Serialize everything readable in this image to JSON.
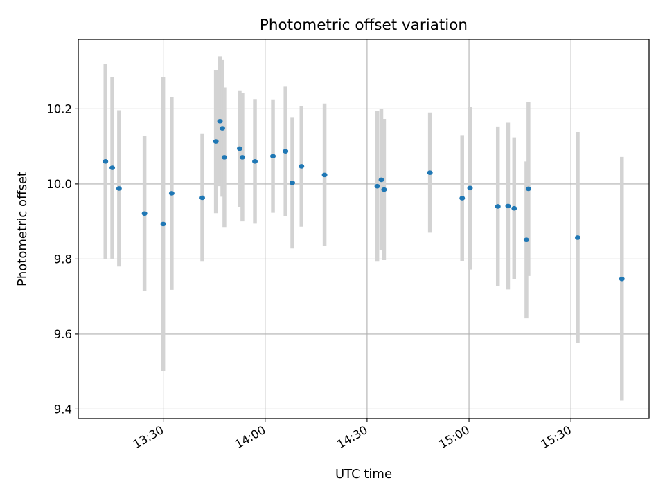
{
  "chart_data": {
    "type": "scatter",
    "title": "Photometric offset variation",
    "xlabel": "UTC time",
    "ylabel": "Photometric offset",
    "x_axis": {
      "scale": "time",
      "range": [
        "13:05",
        "15:53"
      ],
      "ticks": [
        "13:30",
        "14:00",
        "14:30",
        "15:00",
        "15:30"
      ]
    },
    "y_axis": {
      "range": [
        9.375,
        10.385
      ],
      "ticks": [
        "9.4",
        "9.6",
        "9.8",
        "10.0",
        "10.2"
      ]
    },
    "grid": true,
    "legend": "none",
    "colors": {
      "marker": "#1f77b4",
      "errorbar": "#d3d3d3",
      "grid": "#b0b0b0"
    },
    "series": [
      {
        "points": [
          {
            "x": "13:13",
            "y": 10.06,
            "err": 0.26
          },
          {
            "x": "13:15",
            "y": 10.043,
            "err": 0.242
          },
          {
            "x": "13:17",
            "y": 9.988,
            "err": 0.208
          },
          {
            "x": "13:24.5",
            "y": 9.921,
            "err": 0.206
          },
          {
            "x": "13:30",
            "y": 9.893,
            "err": 0.392
          },
          {
            "x": "13:32.5",
            "y": 9.975,
            "err": 0.257
          },
          {
            "x": "13:41.5",
            "y": 9.963,
            "err": 0.17
          },
          {
            "x": "13:45.5",
            "y": 10.113,
            "err": 0.191
          },
          {
            "x": "13:46.7",
            "y": 10.167,
            "err": 0.173
          },
          {
            "x": "13:47.4",
            "y": 10.148,
            "err": 0.182
          },
          {
            "x": "13:48",
            "y": 10.071,
            "err": 0.186
          },
          {
            "x": "13:52.5",
            "y": 10.094,
            "err": 0.155
          },
          {
            "x": "13:53.3",
            "y": 10.071,
            "err": 0.171
          },
          {
            "x": "13:57",
            "y": 10.06,
            "err": 0.166
          },
          {
            "x": "14:02.3",
            "y": 10.074,
            "err": 0.151
          },
          {
            "x": "14:06",
            "y": 10.087,
            "err": 0.172
          },
          {
            "x": "14:08",
            "y": 10.003,
            "err": 0.175
          },
          {
            "x": "14:10.7",
            "y": 10.047,
            "err": 0.161
          },
          {
            "x": "14:17.5",
            "y": 10.024,
            "err": 0.19
          },
          {
            "x": "14:33",
            "y": 9.994,
            "err": 0.201
          },
          {
            "x": "14:34.2",
            "y": 10.011,
            "err": 0.188
          },
          {
            "x": "14:35",
            "y": 9.985,
            "err": 0.188
          },
          {
            "x": "14:48.5",
            "y": 10.03,
            "err": 0.16
          },
          {
            "x": "14:58",
            "y": 9.962,
            "err": 0.168
          },
          {
            "x": "15:00.3",
            "y": 9.989,
            "err": 0.217
          },
          {
            "x": "15:08.5",
            "y": 9.94,
            "err": 0.213
          },
          {
            "x": "15:11.5",
            "y": 9.941,
            "err": 0.222
          },
          {
            "x": "15:13.3",
            "y": 9.935,
            "err": 0.189
          },
          {
            "x": "15:16.9",
            "y": 9.851,
            "err": 0.209
          },
          {
            "x": "15:17.5",
            "y": 9.987,
            "err": 0.232
          },
          {
            "x": "15:32",
            "y": 9.857,
            "err": 0.281
          },
          {
            "x": "15:45",
            "y": 9.747,
            "err": 0.325
          }
        ]
      }
    ]
  }
}
